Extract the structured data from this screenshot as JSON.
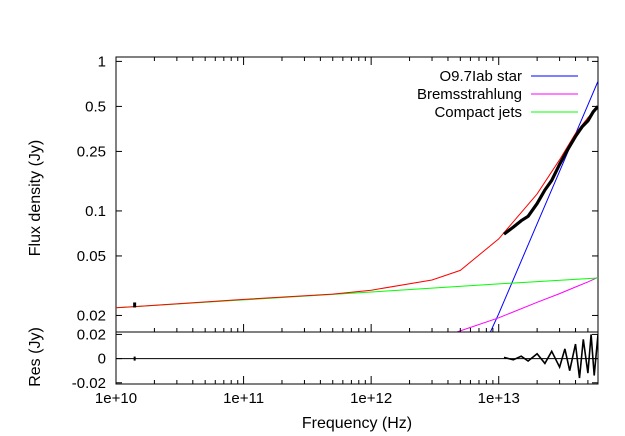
{
  "chart_data": {
    "type": "line",
    "xlabel": "Frequency (Hz)",
    "x_scale": "log",
    "xlim": [
      10000000000.0,
      60000000000000.0
    ],
    "x_ticks": [
      {
        "value": 10000000000.0,
        "label": "1e+10"
      },
      {
        "value": 100000000000.0,
        "label": "1e+11"
      },
      {
        "value": 1000000000000.0,
        "label": "1e+12"
      },
      {
        "value": 10000000000000.0,
        "label": "1e+13"
      }
    ],
    "panels": [
      {
        "ylabel": "Flux density (Jy)",
        "y_scale": "log",
        "ylim": [
          0.0155,
          1.07
        ],
        "y_ticks": [
          {
            "value": 1,
            "label": "1"
          },
          {
            "value": 0.5,
            "label": "0.5"
          },
          {
            "value": 0.25,
            "label": "0.25"
          },
          {
            "value": 0.1,
            "label": "0.1"
          },
          {
            "value": 0.05,
            "label": "0.05"
          },
          {
            "value": 0.02,
            "label": "0.02"
          }
        ],
        "legend_position": "top-right",
        "series": [
          {
            "name": "O9.7Iab star",
            "color": "#0000ff",
            "legend": true,
            "x": [
              8600000000000.0,
              10000000000000.0,
              20000000000000.0,
              30000000000000.0,
              40000000000000.0,
              50000000000000.0,
              60000000000000.0
            ],
            "y": [
              0.0155,
              0.0205,
              0.082,
              0.184,
              0.327,
              0.512,
              0.737
            ]
          },
          {
            "name": "Bremsstrahlung",
            "color": "#ff00ff",
            "legend": true,
            "x": [
              4700000000000.0,
              10000000000000.0,
              20000000000000.0,
              30000000000000.0,
              40000000000000.0,
              50000000000000.0,
              60000000000000.0
            ],
            "y": [
              0.0155,
              0.0193,
              0.0245,
              0.028,
              0.031,
              0.0335,
              0.036
            ]
          },
          {
            "name": "Compact jets",
            "color": "#00ff00",
            "legend": true,
            "x": [
              10000000000.0,
              100000000000.0,
              1000000000000.0,
              10000000000000.0,
              60000000000000.0
            ],
            "y": [
              0.0225,
              0.0254,
              0.0287,
              0.0325,
              0.0356
            ]
          },
          {
            "name": "",
            "color": "#ff0000",
            "legend": false,
            "x": [
              10000000000.0,
              100000000000.0,
              500000000000.0,
              1000000000000.0,
              3000000000000.0,
              5000000000000.0,
              10000000000000.0,
              20000000000000.0,
              30000000000000.0,
              40000000000000.0,
              50000000000000.0,
              60000000000000.0
            ],
            "y": [
              0.0225,
              0.0256,
              0.0278,
              0.0295,
              0.0345,
              0.04,
              0.065,
              0.13,
              0.22,
              0.33,
              0.42,
              0.5
            ]
          }
        ],
        "observed": {
          "color": "#000000",
          "x": [
            14000000000.0,
            11000000000000.0,
            13000000000000.0,
            15000000000000.0,
            17000000000000.0,
            20000000000000.0,
            23000000000000.0,
            26000000000000.0,
            30000000000000.0,
            35000000000000.0,
            40000000000000.0,
            45000000000000.0,
            50000000000000.0,
            55000000000000.0,
            60000000000000.0
          ],
          "y": [
            0.0235,
            0.07,
            0.078,
            0.086,
            0.092,
            0.112,
            0.138,
            0.16,
            0.205,
            0.26,
            0.315,
            0.365,
            0.4,
            0.46,
            0.5
          ]
        }
      },
      {
        "ylabel": "Res (Jy)",
        "y_scale": "linear",
        "ylim": [
          -0.021,
          0.022
        ],
        "y_ticks": [
          {
            "value": 0.02,
            "label": "0.02"
          },
          {
            "value": 0,
            "label": "0"
          },
          {
            "value": -0.02,
            "label": "-0.02"
          }
        ],
        "zero_line": true,
        "residuals": {
          "color": "#000000",
          "x": [
            14000000000.0,
            11000000000000.0,
            13000000000000.0,
            15000000000000.0,
            17000000000000.0,
            20000000000000.0,
            23000000000000.0,
            26000000000000.0,
            30000000000000.0,
            33000000000000.0,
            36000000000000.0,
            40000000000000.0,
            43000000000000.0,
            46000000000000.0,
            50000000000000.0,
            53000000000000.0,
            56000000000000.0,
            60000000000000.0
          ],
          "y": [
            0,
            0.001,
            -0.001,
            0.002,
            -0.002,
            0.004,
            -0.004,
            0.006,
            -0.007,
            0.008,
            -0.01,
            0.012,
            -0.016,
            0.016,
            -0.012,
            0.02,
            -0.014,
            0.02
          ]
        }
      }
    ]
  }
}
